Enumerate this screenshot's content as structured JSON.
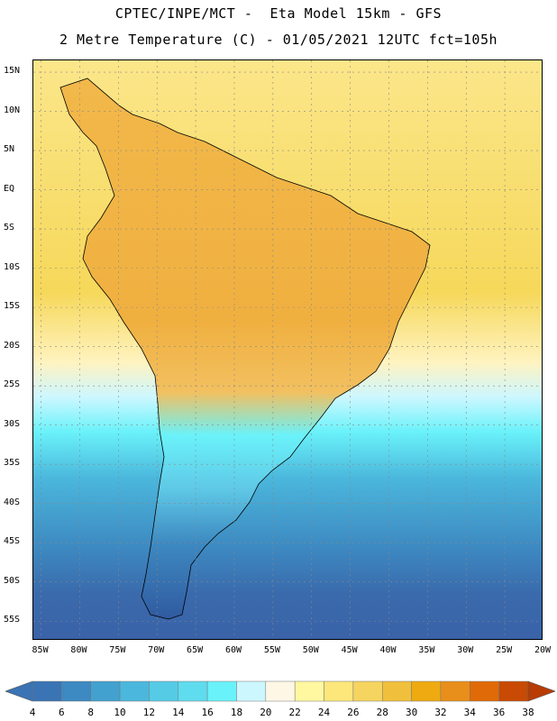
{
  "header": {
    "line1": "CPTEC/INPE/MCT -  Eta Model 15km - GFS",
    "line2": "2 Metre Temperature (C) - 01/05/2021 12UTC fct=105h"
  },
  "axes": {
    "lat_labels": [
      "15N",
      "10N",
      "5N",
      "EQ",
      "5S",
      "10S",
      "15S",
      "20S",
      "25S",
      "30S",
      "35S",
      "40S",
      "45S",
      "50S",
      "55S"
    ],
    "lat_values": [
      15,
      10,
      5,
      0,
      -5,
      -10,
      -15,
      -20,
      -25,
      -30,
      -35,
      -40,
      -45,
      -50,
      -55
    ],
    "lon_labels": [
      "85W",
      "80W",
      "75W",
      "70W",
      "65W",
      "60W",
      "55W",
      "50W",
      "45W",
      "40W",
      "35W",
      "30W",
      "25W",
      "20W"
    ],
    "lon_values": [
      -85,
      -80,
      -75,
      -70,
      -65,
      -60,
      -55,
      -50,
      -45,
      -40,
      -35,
      -30,
      -25,
      -20
    ],
    "lat_range": [
      -57.5,
      16.5
    ],
    "lon_range": [
      -86,
      -20
    ]
  },
  "colorbar": {
    "labels": [
      "4",
      "6",
      "8",
      "10",
      "12",
      "14",
      "16",
      "18",
      "20",
      "22",
      "24",
      "26",
      "28",
      "30",
      "32",
      "34",
      "36",
      "38"
    ],
    "colors": [
      "#3a74b4",
      "#3d89c1",
      "#43a1cf",
      "#4bb7dc",
      "#55cbe6",
      "#5fdcee",
      "#6af2fa",
      "#cdf7ff",
      "#fff7e6",
      "#fff8a0",
      "#fde77a",
      "#f5d45f",
      "#f0c03c",
      "#eeaa10",
      "#e88e1a",
      "#e06a08",
      "#c84a04",
      "#b83c04"
    ]
  },
  "map": {
    "land_color": "#f2b84a",
    "ocean_warm": "#f6d85a",
    "ocean_mid": "#cdf7ff",
    "ocean_cool": "#5fdcee",
    "ocean_cold": "#3a74b4",
    "border_color": "#000000"
  }
}
